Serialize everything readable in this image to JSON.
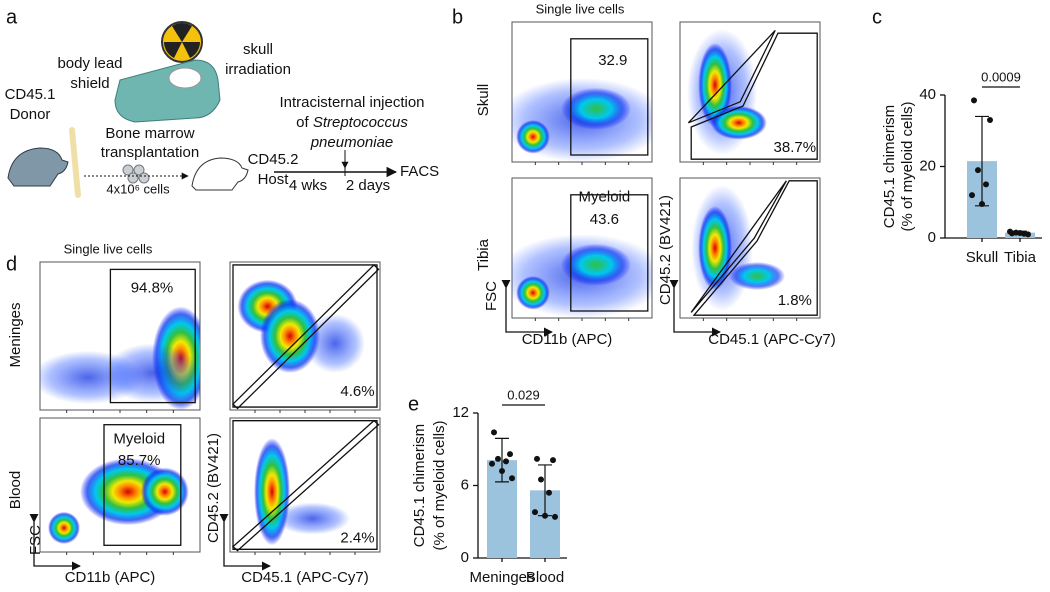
{
  "panel_labels": [
    "a",
    "b",
    "c",
    "d",
    "e"
  ],
  "schematic": {
    "shield": [
      "body lead",
      "shield"
    ],
    "irradiation": [
      "skull",
      "irradiation"
    ],
    "donor": [
      "CD45.1",
      "Donor"
    ],
    "transplant": [
      "Bone marrow",
      "transplantation"
    ],
    "cell_count": "4x10⁶ cells",
    "host": [
      "CD45.2",
      "Host"
    ],
    "injection": [
      "Intracisternal injection",
      "of"
    ],
    "organism": [
      "Streptococcus",
      "pneumoniae"
    ],
    "timeline": [
      "4 wks",
      "2 days"
    ],
    "readout": "FACS"
  },
  "flow_b": {
    "title": "Single live cells",
    "rows": [
      "Skull",
      "Tibia"
    ],
    "gates": {
      "skull_cd11b": "32.9",
      "skull_cd45": "38.7%",
      "tibia_name": "Myeloid",
      "tibia_cd11b": "43.6",
      "tibia_cd45": "1.8%"
    },
    "axes": {
      "fsc": "FSC",
      "cd11b": "CD11b (APC)",
      "cd452": "CD45.2 (BV421)",
      "cd451": "CD45.1 (APC-Cy7)"
    }
  },
  "flow_d": {
    "title": "Single live cells",
    "rows": [
      "Meninges",
      "Blood"
    ],
    "gates": {
      "meninges_cd11b": "94.8%",
      "meninges_cd45": "4.6%",
      "blood_name": "Myeloid",
      "blood_cd11b": "85.7%",
      "blood_cd45": "2.4%"
    },
    "axes": {
      "fsc": "FSC",
      "cd11b": "CD11b (APC)",
      "cd452": "CD45.2 (BV421)",
      "cd451": "CD45.1 (APC-Cy7)"
    }
  },
  "chart_data": [
    {
      "type": "bar",
      "ylabel": [
        "CD45.1 chimerism",
        "(% of myeloid cells)"
      ],
      "categories": [
        "Skull",
        "Tibia"
      ],
      "values": [
        21.5,
        1.5
      ],
      "errors": [
        12.5,
        0.4
      ],
      "points": [
        [
          38.5,
          33,
          19,
          15,
          12,
          9.5
        ],
        [
          1.3,
          1,
          1.5,
          1.2,
          1.8,
          1.4
        ]
      ],
      "color": "#9cc3de",
      "ylim": [
        0,
        40
      ],
      "yticks": [
        0,
        20,
        40
      ],
      "significance": "0.0009"
    },
    {
      "type": "bar",
      "ylabel": [
        "CD45.1 chimerism",
        "(% of myeloid cells)"
      ],
      "categories": [
        "Meninges",
        "Blood"
      ],
      "values": [
        8.1,
        5.6
      ],
      "errors": [
        1.8,
        2.1
      ],
      "points": [
        [
          10.4,
          8.6,
          8.2,
          8.0,
          7.8,
          7.2,
          6.6
        ],
        [
          8.2,
          8.1,
          6.5,
          5.4,
          3.8,
          3.5,
          3.4
        ]
      ],
      "color": "#9cc3de",
      "ylim": [
        0,
        12
      ],
      "yticks": [
        0,
        6,
        12
      ],
      "significance": "0.029"
    }
  ]
}
